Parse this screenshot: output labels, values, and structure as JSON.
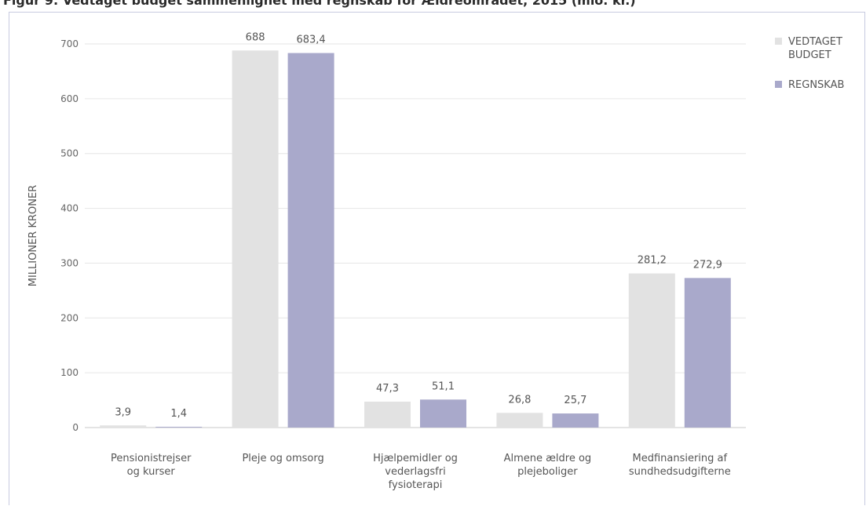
{
  "header_fragment": "Figur 9: Vedtaget budget sammenlignet med regnskab for Ældreområdet, 2015 (mio. kr.)",
  "chart_data": {
    "type": "bar",
    "title": "",
    "xlabel": "",
    "ylabel": "MILLIONER KRONER",
    "ylim": [
      0,
      700
    ],
    "yticks": [
      0,
      100,
      200,
      300,
      400,
      500,
      600,
      700
    ],
    "grid": true,
    "legend_position": "top-right",
    "categories": [
      [
        "Pensionistrejser",
        "og kurser"
      ],
      [
        "Pleje og omsorg"
      ],
      [
        "Hjælpemidler og",
        "vederlagsfri",
        "fysioterapi"
      ],
      [
        "Almene ældre og",
        "plejeboliger"
      ],
      [
        "Medfinansiering af",
        "sundhedsudgifterne"
      ]
    ],
    "series": [
      {
        "name": [
          "VEDTAGET",
          "BUDGET"
        ],
        "color": "#e2e2e2",
        "values": [
          3.9,
          688,
          47.3,
          26.8,
          281.2
        ],
        "labels": [
          "3,9",
          "688",
          "47,3",
          "26,8",
          "281,2"
        ]
      },
      {
        "name": [
          "REGNSKAB"
        ],
        "color": "#a9a9cb",
        "values": [
          1.4,
          683.4,
          51.1,
          25.7,
          272.9
        ],
        "labels": [
          "1,4",
          "683,4",
          "51,1",
          "25,7",
          "272,9"
        ]
      }
    ]
  }
}
